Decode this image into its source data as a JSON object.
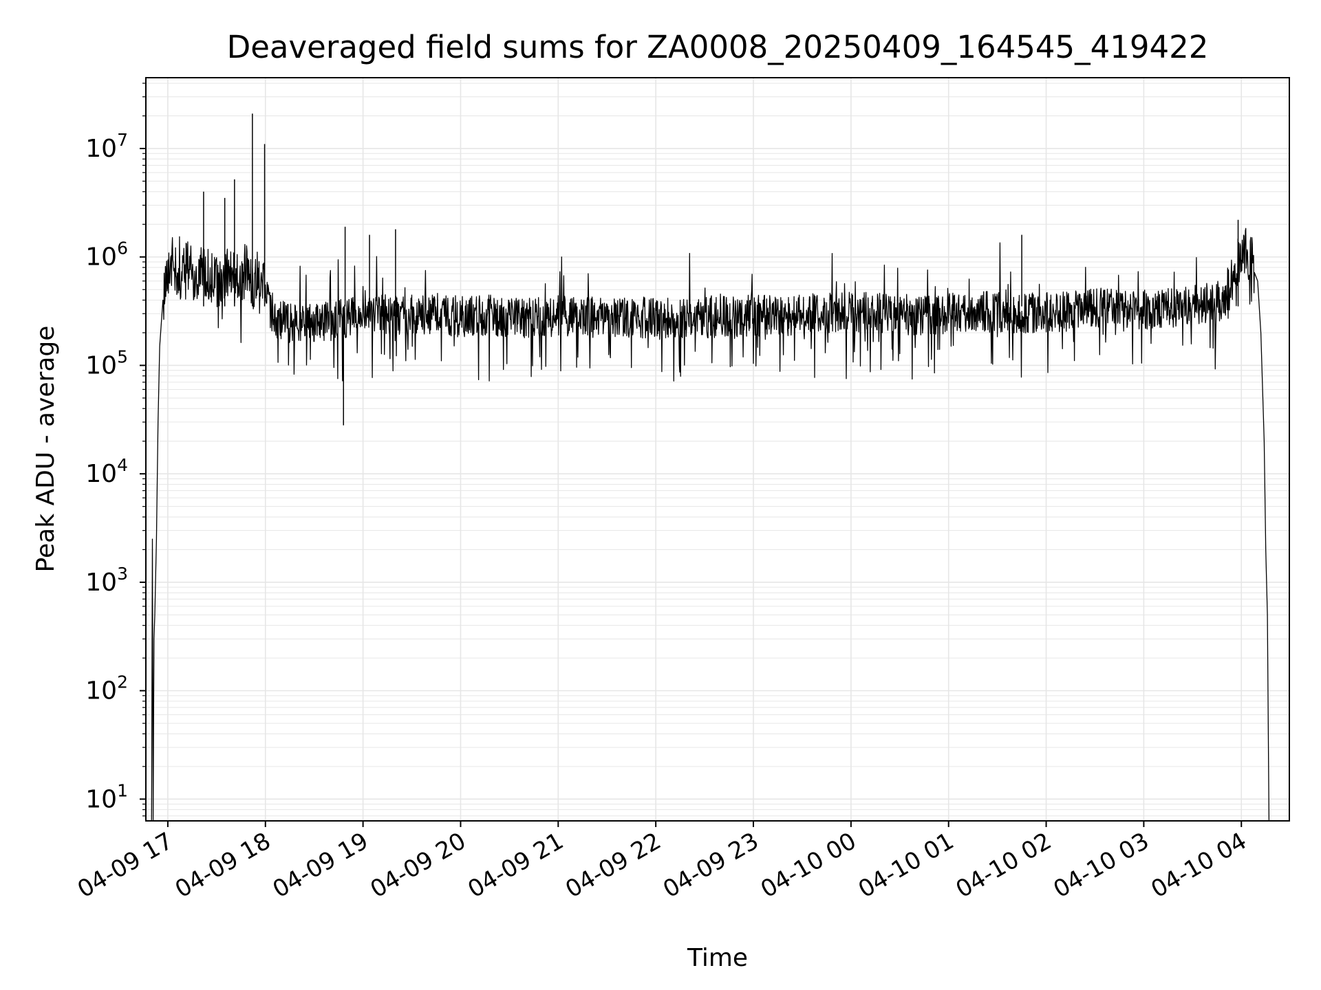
{
  "chart_data": {
    "type": "line",
    "title": "Deaveraged field sums for ZA0008_20250409_164545_419422",
    "xlabel": "Time",
    "ylabel": "Peak ADU - average",
    "yscale": "log",
    "ylim": [
      6.3,
      45000000
    ],
    "xlim": [
      "2025-04-09 16:46:30",
      "2025-04-10 04:29:30"
    ],
    "grid": "major and minor",
    "x_tick_labels": [
      {
        "time": "2025-04-09 17:00",
        "label": "04-09 17"
      },
      {
        "time": "2025-04-09 18:00",
        "label": "04-09 18"
      },
      {
        "time": "2025-04-09 19:00",
        "label": "04-09 19"
      },
      {
        "time": "2025-04-09 20:00",
        "label": "04-09 20"
      },
      {
        "time": "2025-04-09 21:00",
        "label": "04-09 21"
      },
      {
        "time": "2025-04-09 22:00",
        "label": "04-09 22"
      },
      {
        "time": "2025-04-09 23:00",
        "label": "04-09 23"
      },
      {
        "time": "2025-04-10 00:00",
        "label": "04-10 00"
      },
      {
        "time": "2025-04-10 01:00",
        "label": "04-10 01"
      },
      {
        "time": "2025-04-10 02:00",
        "label": "04-10 02"
      },
      {
        "time": "2025-04-10 03:00",
        "label": "04-10 03"
      },
      {
        "time": "2025-04-10 04:00",
        "label": "04-10 04"
      }
    ],
    "y_tick_labels": [
      {
        "value": 10,
        "base": "10",
        "exp": "1"
      },
      {
        "value": 100,
        "base": "10",
        "exp": "2"
      },
      {
        "value": 1000,
        "base": "10",
        "exp": "3"
      },
      {
        "value": 10000,
        "base": "10",
        "exp": "4"
      },
      {
        "value": 100000,
        "base": "10",
        "exp": "5"
      },
      {
        "value": 1000000,
        "base": "10",
        "exp": "6"
      },
      {
        "value": 10000000,
        "base": "10",
        "exp": "7"
      }
    ],
    "line_color": "#000000",
    "grid_color": "#e6e6e6",
    "series": [
      {
        "x": [
          "2025-04-09 16:50:00",
          "2025-04-09 16:50:30",
          "2025-04-09 16:51:00",
          "2025-04-09 16:51:30",
          "2025-04-09 16:52:00",
          "2025-04-09 16:53:00",
          "2025-04-09 16:54:00",
          "2025-04-09 16:55:00",
          "2025-04-09 16:57:00",
          "2025-04-09 16:59:00",
          "2025-04-09 17:02:00",
          "2025-04-09 17:05:00",
          "2025-04-09 17:08:00",
          "2025-04-09 17:12:00",
          "2025-04-09 17:15:00",
          "2025-04-09 17:18:00",
          "2025-04-09 17:21:00",
          "2025-04-09 17:25:00",
          "2025-04-09 17:30:00",
          "2025-04-09 17:35:00",
          "2025-04-09 17:40:00",
          "2025-04-09 17:45:00",
          "2025-04-09 17:50:00",
          "2025-04-09 17:52:00",
          "2025-04-09 17:55:00",
          "2025-04-09 17:58:00",
          "2025-04-09 18:00:00",
          "2025-04-09 18:03:00",
          "2025-04-09 18:08:00",
          "2025-04-09 18:15:00",
          "2025-04-09 18:25:00",
          "2025-04-09 18:35:00",
          "2025-04-09 18:45:00",
          "2025-04-09 18:50:00",
          "2025-04-09 18:57:00",
          "2025-04-09 19:00:00",
          "2025-04-09 19:03:00",
          "2025-04-09 19:10:00",
          "2025-04-09 19:20:00",
          "2025-04-09 19:30:00",
          "2025-04-09 19:45:00",
          "2025-04-09 20:00:00",
          "2025-04-09 20:20:00",
          "2025-04-09 20:40:00",
          "2025-04-09 21:00:00",
          "2025-04-09 21:20:00",
          "2025-04-09 21:40:00",
          "2025-04-09 22:00:00",
          "2025-04-09 22:20:00",
          "2025-04-09 22:40:00",
          "2025-04-09 23:00:00",
          "2025-04-09 23:20:00",
          "2025-04-09 23:40:00",
          "2025-04-10 00:00:00",
          "2025-04-10 00:20:00",
          "2025-04-10 00:40:00",
          "2025-04-10 01:00:00",
          "2025-04-10 01:20:00",
          "2025-04-10 01:40:00",
          "2025-04-10 02:00:00",
          "2025-04-10 02:20:00",
          "2025-04-10 02:40:00",
          "2025-04-10 03:00:00",
          "2025-04-10 03:20:00",
          "2025-04-10 03:40:00",
          "2025-04-10 03:50:00",
          "2025-04-10 03:55:00",
          "2025-04-10 04:00:00",
          "2025-04-10 04:03:00",
          "2025-04-10 04:06:00",
          "2025-04-10 04:08:00",
          "2025-04-10 04:10:00",
          "2025-04-10 04:12:00",
          "2025-04-10 04:14:00",
          "2025-04-10 04:15:00",
          "2025-04-10 04:16:00",
          "2025-04-10 04:17:00"
        ],
        "y": [
          6.3,
          2500,
          6.3,
          300,
          500,
          2500,
          30000,
          150000,
          400000,
          700000,
          900000,
          800000,
          700000,
          900000,
          700000,
          650000,
          800000,
          700000,
          600000,
          700000,
          650000,
          600000,
          800000,
          500000,
          700000,
          600000,
          450000,
          300000,
          260000,
          250000,
          240000,
          250000,
          260000,
          280000,
          300000,
          350000,
          320000,
          300000,
          280000,
          290000,
          300000,
          280000,
          290000,
          270000,
          290000,
          280000,
          270000,
          280000,
          270000,
          280000,
          290000,
          280000,
          300000,
          320000,
          300000,
          290000,
          300000,
          320000,
          300000,
          310000,
          320000,
          340000,
          330000,
          350000,
          380000,
          400000,
          600000,
          1200000,
          1100000,
          1000000,
          800000,
          600000,
          200000,
          20000,
          2000,
          500,
          6.3
        ]
      }
    ],
    "annotations": [
      {
        "x": "2025-04-09 17:52:00",
        "y": 21000000
      },
      {
        "x": "2025-04-09 17:59:30",
        "y": 11000000
      },
      {
        "x": "2025-04-09 17:41:00",
        "y": 5200000
      },
      {
        "x": "2025-04-09 17:35:00",
        "y": 3500000
      },
      {
        "x": "2025-04-09 17:22:00",
        "y": 4000000
      },
      {
        "x": "2025-04-09 18:49:00",
        "y": 1900000
      },
      {
        "x": "2025-04-09 19:04:00",
        "y": 1600000
      },
      {
        "x": "2025-04-09 19:20:00",
        "y": 1800000
      },
      {
        "x": "2025-04-09 18:48:00",
        "y": 28000
      },
      {
        "x": "2025-04-10 03:58:00",
        "y": 2200000
      },
      {
        "x": "2025-04-10 01:45:00",
        "y": 1600000
      }
    ]
  }
}
